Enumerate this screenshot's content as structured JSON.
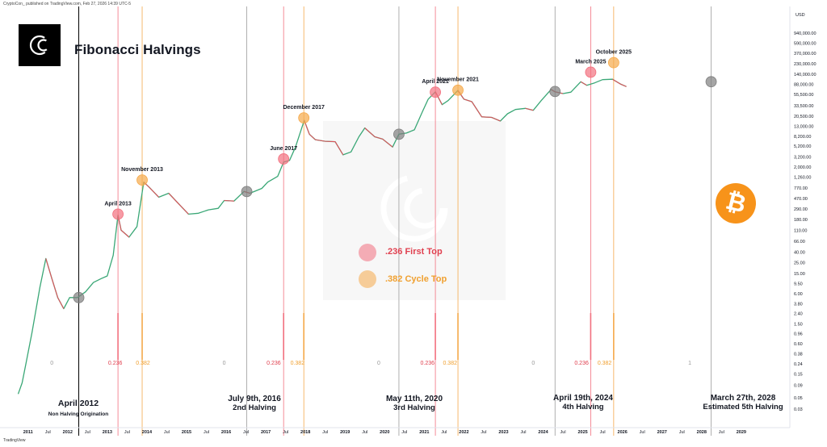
{
  "header": {
    "publish_line": "CryptoCon_ published on TradingView.com, Feb 27, 2026 14:39 UTC-5",
    "title": "Fibonacci Halvings",
    "tv_badge": "TradingView"
  },
  "legend": [
    {
      "label": ".236 First Top",
      "color": "#f2707f"
    },
    {
      "label": ".382 Cycle Top",
      "color": "#f5a94a"
    }
  ],
  "btc_badge": {
    "symbol": "₿",
    "color": "#f7931a"
  },
  "halving_annotations": [
    {
      "date": "April 2012",
      "subtitle": "Non Halving Origination"
    },
    {
      "date": "July 9th, 2016",
      "subtitle": "2nd Halving"
    },
    {
      "date": "May 11th, 2020",
      "subtitle": "3rd Halving"
    },
    {
      "date": "April 19th, 2024",
      "subtitle": "4th Halving"
    },
    {
      "date": "March 27th, 2028",
      "subtitle": "Estimated 5th Halving"
    }
  ],
  "chart_data": {
    "type": "line",
    "scale": "log",
    "currency_label": "USD",
    "ylim": [
      0.02,
      1400000
    ],
    "y_ticks": [
      {
        "value": 940000,
        "label": "940,000.00"
      },
      {
        "value": 590000,
        "label": "590,000.00"
      },
      {
        "value": 370000,
        "label": "370,000.00"
      },
      {
        "value": 230000,
        "label": "230,000.00"
      },
      {
        "value": 140000,
        "label": "140,000.00"
      },
      {
        "value": 88000,
        "label": "88,000.00"
      },
      {
        "value": 55500,
        "label": "55,500.00"
      },
      {
        "value": 33500,
        "label": "33,500.00"
      },
      {
        "value": 20500,
        "label": "20,500.00"
      },
      {
        "value": 13000,
        "label": "13,000.00"
      },
      {
        "value": 8200,
        "label": "8,200.00"
      },
      {
        "value": 5200,
        "label": "5,200.00"
      },
      {
        "value": 3200,
        "label": "3,200.00"
      },
      {
        "value": 2000,
        "label": "2,000.00"
      },
      {
        "value": 1260,
        "label": "1,260.00"
      },
      {
        "value": 770,
        "label": "770.00"
      },
      {
        "value": 470,
        "label": "470.00"
      },
      {
        "value": 290,
        "label": "290.00"
      },
      {
        "value": 180,
        "label": "180.00"
      },
      {
        "value": 110,
        "label": "110.00"
      },
      {
        "value": 66,
        "label": "66.00"
      },
      {
        "value": 40,
        "label": "40.00"
      },
      {
        "value": 25,
        "label": "25.00"
      },
      {
        "value": 15,
        "label": "15.00"
      },
      {
        "value": 9.5,
        "label": "9.50"
      },
      {
        "value": 6,
        "label": "6.00"
      },
      {
        "value": 3.8,
        "label": "3.80"
      },
      {
        "value": 2.4,
        "label": "2.40"
      },
      {
        "value": 1.5,
        "label": "1.50"
      },
      {
        "value": 0.96,
        "label": "0.96"
      },
      {
        "value": 0.6,
        "label": "0.60"
      },
      {
        "value": 0.38,
        "label": "0.38"
      },
      {
        "value": 0.24,
        "label": "0.24"
      },
      {
        "value": 0.15,
        "label": "0.15"
      },
      {
        "value": 0.09,
        "label": "0.09"
      },
      {
        "value": 0.05,
        "label": "0.05"
      },
      {
        "value": 0.03,
        "label": "0.03"
      }
    ],
    "xlim": [
      2010.7,
      2029.9
    ],
    "x_ticks": [
      {
        "value": 2011,
        "label": "2011",
        "major": true
      },
      {
        "value": 2011.5,
        "label": "Jul",
        "major": false
      },
      {
        "value": 2012,
        "label": "2012",
        "major": true
      },
      {
        "value": 2012.5,
        "label": "Jul",
        "major": false
      },
      {
        "value": 2013,
        "label": "2013",
        "major": true
      },
      {
        "value": 2013.5,
        "label": "Jul",
        "major": false
      },
      {
        "value": 2014,
        "label": "2014",
        "major": true
      },
      {
        "value": 2014.5,
        "label": "Jul",
        "major": false
      },
      {
        "value": 2015,
        "label": "2015",
        "major": true
      },
      {
        "value": 2015.5,
        "label": "Jul",
        "major": false
      },
      {
        "value": 2016,
        "label": "2016",
        "major": true
      },
      {
        "value": 2016.5,
        "label": "Jul",
        "major": false
      },
      {
        "value": 2017,
        "label": "2017",
        "major": true
      },
      {
        "value": 2017.5,
        "label": "Jul",
        "major": false
      },
      {
        "value": 2018,
        "label": "2018",
        "major": true
      },
      {
        "value": 2018.5,
        "label": "Jul",
        "major": false
      },
      {
        "value": 2019,
        "label": "2019",
        "major": true
      },
      {
        "value": 2019.5,
        "label": "Jul",
        "major": false
      },
      {
        "value": 2020,
        "label": "2020",
        "major": true
      },
      {
        "value": 2020.5,
        "label": "Jul",
        "major": false
      },
      {
        "value": 2021,
        "label": "2021",
        "major": true
      },
      {
        "value": 2021.5,
        "label": "Jul",
        "major": false
      },
      {
        "value": 2022,
        "label": "2022",
        "major": true
      },
      {
        "value": 2022.5,
        "label": "Jul",
        "major": false
      },
      {
        "value": 2023,
        "label": "2023",
        "major": true
      },
      {
        "value": 2023.5,
        "label": "Jul",
        "major": false
      },
      {
        "value": 2024,
        "label": "2024",
        "major": true
      },
      {
        "value": 2024.5,
        "label": "Jul",
        "major": false
      },
      {
        "value": 2025,
        "label": "2025",
        "major": true
      },
      {
        "value": 2025.5,
        "label": "Jul",
        "major": false
      },
      {
        "value": 2026,
        "label": "2026",
        "major": true
      },
      {
        "value": 2026.5,
        "label": "Jul",
        "major": false
      },
      {
        "value": 2027,
        "label": "2027",
        "major": true
      },
      {
        "value": 2027.5,
        "label": "Jul",
        "major": false
      },
      {
        "value": 2028,
        "label": "2028",
        "major": true
      },
      {
        "value": 2028.5,
        "label": "Jul",
        "major": false
      },
      {
        "value": 2029,
        "label": "2029",
        "major": true
      }
    ],
    "price_series": {
      "name": "BTCUSD",
      "points": [
        [
          2010.75,
          0.06
        ],
        [
          2010.85,
          0.1
        ],
        [
          2010.95,
          0.25
        ],
        [
          2011.1,
          1.0
        ],
        [
          2011.3,
          8
        ],
        [
          2011.45,
          30
        ],
        [
          2011.6,
          12
        ],
        [
          2011.75,
          5
        ],
        [
          2011.9,
          3
        ],
        [
          2012.05,
          5
        ],
        [
          2012.25,
          5
        ],
        [
          2012.45,
          6.5
        ],
        [
          2012.65,
          10
        ],
        [
          2012.85,
          12
        ],
        [
          2013.0,
          13.5
        ],
        [
          2013.15,
          35
        ],
        [
          2013.27,
          220
        ],
        [
          2013.35,
          110
        ],
        [
          2013.55,
          80
        ],
        [
          2013.75,
          130
        ],
        [
          2013.92,
          1000
        ],
        [
          2014.05,
          800
        ],
        [
          2014.3,
          500
        ],
        [
          2014.55,
          600
        ],
        [
          2014.8,
          370
        ],
        [
          2015.05,
          230
        ],
        [
          2015.3,
          240
        ],
        [
          2015.55,
          280
        ],
        [
          2015.8,
          300
        ],
        [
          2015.95,
          430
        ],
        [
          2016.2,
          420
        ],
        [
          2016.45,
          650
        ],
        [
          2016.6,
          600
        ],
        [
          2016.9,
          750
        ],
        [
          2017.05,
          1000
        ],
        [
          2017.3,
          1300
        ],
        [
          2017.45,
          2500
        ],
        [
          2017.6,
          2700
        ],
        [
          2017.75,
          5000
        ],
        [
          2017.97,
          17000
        ],
        [
          2018.1,
          9000
        ],
        [
          2018.25,
          7000
        ],
        [
          2018.5,
          6500
        ],
        [
          2018.75,
          6400
        ],
        [
          2018.95,
          3500
        ],
        [
          2019.15,
          4000
        ],
        [
          2019.35,
          8000
        ],
        [
          2019.5,
          12000
        ],
        [
          2019.75,
          8000
        ],
        [
          2019.95,
          7200
        ],
        [
          2020.2,
          5000
        ],
        [
          2020.36,
          9000
        ],
        [
          2020.55,
          9500
        ],
        [
          2020.75,
          11000
        ],
        [
          2020.95,
          25000
        ],
        [
          2021.1,
          45000
        ],
        [
          2021.28,
          63000
        ],
        [
          2021.45,
          35000
        ],
        [
          2021.6,
          42000
        ],
        [
          2021.85,
          67000
        ],
        [
          2022.0,
          45000
        ],
        [
          2022.2,
          40000
        ],
        [
          2022.45,
          20000
        ],
        [
          2022.7,
          19500
        ],
        [
          2022.92,
          16500
        ],
        [
          2023.1,
          23000
        ],
        [
          2023.3,
          28000
        ],
        [
          2023.55,
          29500
        ],
        [
          2023.75,
          27000
        ],
        [
          2023.95,
          42000
        ],
        [
          2024.2,
          70000
        ],
        [
          2024.3,
          63000
        ],
        [
          2024.5,
          58000
        ],
        [
          2024.7,
          62000
        ],
        [
          2024.95,
          100000
        ],
        [
          2025.1,
          85000
        ],
        [
          2025.3,
          95000
        ],
        [
          2025.5,
          110000
        ],
        [
          2025.75,
          112000
        ],
        [
          2025.95,
          90000
        ],
        [
          2026.1,
          80000
        ]
      ]
    },
    "halving_lines": [
      {
        "x": 2012.28,
        "color": "#000000"
      },
      {
        "x": 2016.52,
        "color": "#9c9c9c"
      },
      {
        "x": 2020.36,
        "color": "#9c9c9c"
      },
      {
        "x": 2024.3,
        "color": "#9c9c9c"
      },
      {
        "x": 2028.24,
        "color": "#9c9c9c"
      }
    ],
    "fib_lines": [
      {
        "x": 2013.27,
        "level": "0.236",
        "color": "#f2707f"
      },
      {
        "x": 2013.88,
        "level": "0.382",
        "color": "#f5a94a"
      },
      {
        "x": 2017.45,
        "level": "0.236",
        "color": "#f2707f"
      },
      {
        "x": 2017.96,
        "level": "0.382",
        "color": "#f5a94a"
      },
      {
        "x": 2021.28,
        "level": "0.236",
        "color": "#f2707f"
      },
      {
        "x": 2021.85,
        "level": "0.382",
        "color": "#f5a94a"
      },
      {
        "x": 2025.2,
        "level": "0.236",
        "color": "#f2707f"
      },
      {
        "x": 2025.78,
        "level": "0.382",
        "color": "#f5a94a"
      }
    ],
    "level_labels": [
      {
        "x": 2011.6,
        "text": "0",
        "color": "#999999"
      },
      {
        "x": 2013.2,
        "text": "0.236",
        "color": "#e0404f"
      },
      {
        "x": 2013.9,
        "text": "0.382",
        "color": "#f0a030"
      },
      {
        "x": 2015.95,
        "text": "0",
        "color": "#999999"
      },
      {
        "x": 2017.2,
        "text": "0.236",
        "color": "#e0404f"
      },
      {
        "x": 2017.8,
        "text": "0.382",
        "color": "#f0a030"
      },
      {
        "x": 2019.85,
        "text": "0",
        "color": "#999999"
      },
      {
        "x": 2021.08,
        "text": "0.236",
        "color": "#e0404f"
      },
      {
        "x": 2021.65,
        "text": "0.382",
        "color": "#f0a030"
      },
      {
        "x": 2023.75,
        "text": "0",
        "color": "#999999"
      },
      {
        "x": 2024.97,
        "text": "0.236",
        "color": "#e0404f"
      },
      {
        "x": 2025.55,
        "text": "0.382",
        "color": "#f0a030"
      },
      {
        "x": 2027.7,
        "text": "1",
        "color": "#999999"
      }
    ],
    "markers": [
      {
        "x": 2012.28,
        "y": 5,
        "kind": "halving",
        "label": ""
      },
      {
        "x": 2013.27,
        "y": 230,
        "kind": "first_top",
        "label": "April 2013"
      },
      {
        "x": 2013.88,
        "y": 1100,
        "kind": "cycle_top",
        "label": "November 2013"
      },
      {
        "x": 2016.52,
        "y": 650,
        "kind": "halving",
        "label": ""
      },
      {
        "x": 2017.45,
        "y": 2900,
        "kind": "first_top",
        "label": "June 2017"
      },
      {
        "x": 2017.96,
        "y": 19000,
        "kind": "cycle_top",
        "label": "December 2017"
      },
      {
        "x": 2020.36,
        "y": 9000,
        "kind": "halving",
        "label": ""
      },
      {
        "x": 2021.28,
        "y": 62000,
        "kind": "first_top",
        "label": "April 2021"
      },
      {
        "x": 2021.85,
        "y": 68000,
        "kind": "cycle_top",
        "label": "November 2021"
      },
      {
        "x": 2024.3,
        "y": 64000,
        "kind": "halving",
        "label": ""
      },
      {
        "x": 2025.2,
        "y": 155000,
        "kind": "first_top",
        "label": "March 2025"
      },
      {
        "x": 2025.78,
        "y": 240000,
        "kind": "cycle_top",
        "label": "October 2025"
      },
      {
        "x": 2028.24,
        "y": 100000,
        "kind": "halving",
        "label": ""
      }
    ],
    "marker_colors": {
      "halving": "#7f7f7f",
      "first_top": "#f2707f",
      "cycle_top": "#f5a94a"
    }
  }
}
